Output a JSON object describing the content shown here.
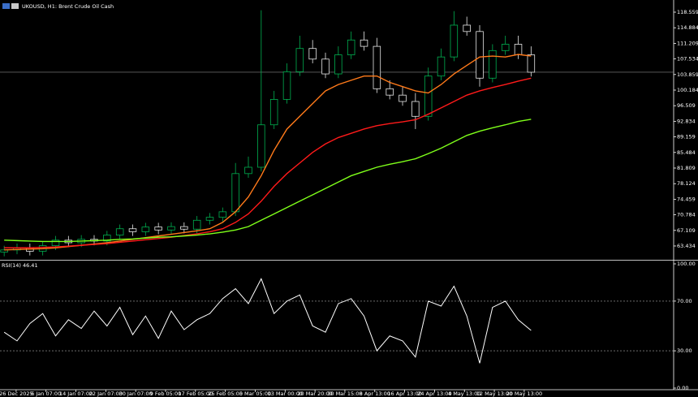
{
  "chart_data": [
    {
      "type": "candlestick",
      "title": "UKOUSD, H1:  Brent Crude Oil Cash",
      "x": [
        -0.4,
        0.03,
        0.46,
        0.89,
        1.32,
        1.75,
        2.18,
        2.61,
        3.04,
        3.47,
        3.9,
        4.33,
        4.76,
        5.19,
        5.62,
        6.05,
        6.48,
        6.91,
        7.34,
        7.77,
        8.2,
        8.63,
        9.06,
        9.49,
        9.92,
        10.35,
        10.78,
        11.21,
        11.64,
        12.07,
        12.5,
        12.93,
        13.36,
        13.79,
        14.22,
        14.65,
        15.08,
        15.51,
        15.94,
        16.37,
        16.8,
        17.23
      ],
      "open": [
        62.0,
        62.5,
        63.0,
        62.2,
        63.5,
        64.8,
        64.2,
        65.0,
        64.6,
        66.0,
        67.5,
        66.8,
        67.9,
        67.2,
        68.0,
        67.4,
        69.5,
        70.2,
        71.5,
        80.5,
        82.0,
        92.0,
        98.0,
        104.5,
        110.0,
        107.5,
        104.0,
        108.5,
        112.0,
        110.5,
        100.5,
        99.0,
        97.5,
        94.0,
        103.5,
        108.0,
        115.5,
        114.0,
        103.0,
        109.5,
        111.0,
        108.5
      ],
      "high": [
        63.5,
        64.0,
        64.0,
        64.5,
        65.8,
        65.8,
        66.0,
        66.0,
        67.0,
        68.5,
        68.5,
        68.9,
        68.9,
        69.0,
        69.0,
        70.5,
        71.2,
        72.5,
        83.0,
        84.5,
        119.0,
        100.0,
        106.5,
        113.0,
        112.0,
        109.0,
        110.5,
        114.0,
        114.0,
        112.5,
        102.5,
        101.0,
        99.5,
        105.5,
        110.0,
        118.8,
        117.5,
        115.5,
        111.0,
        113.0,
        113.0,
        110.5
      ],
      "low": [
        61.0,
        61.5,
        61.2,
        61.2,
        62.5,
        63.2,
        63.2,
        63.6,
        63.6,
        65.0,
        65.8,
        65.8,
        66.2,
        66.2,
        66.4,
        66.4,
        68.5,
        69.2,
        70.5,
        79.5,
        81.0,
        91.0,
        97.0,
        103.5,
        106.5,
        103.0,
        103.0,
        107.5,
        109.5,
        99.5,
        98.0,
        96.5,
        91.0,
        93.0,
        102.5,
        107.0,
        113.0,
        101.0,
        102.0,
        108.5,
        107.5,
        103.4
      ],
      "close": [
        62.5,
        63.0,
        62.2,
        63.5,
        64.8,
        64.2,
        65.0,
        64.6,
        66.0,
        67.5,
        66.8,
        67.9,
        67.2,
        68.0,
        67.4,
        69.5,
        70.2,
        71.5,
        80.5,
        82.0,
        92.0,
        98.0,
        104.5,
        110.0,
        107.5,
        104.0,
        108.5,
        112.0,
        110.5,
        100.5,
        99.0,
        97.5,
        94.0,
        103.5,
        108.0,
        115.5,
        114.0,
        103.0,
        109.5,
        111.0,
        108.5,
        104.4
      ],
      "up_color": "#00b050",
      "down_color": "#e8e8e8",
      "series": [
        {
          "color": "#ff7a1a",
          "values": [
            62.5,
            62.6,
            62.7,
            62.8,
            63.0,
            63.3,
            63.6,
            63.9,
            64.2,
            64.6,
            65.0,
            65.4,
            65.8,
            66.2,
            66.6,
            67.0,
            67.5,
            69.0,
            71.5,
            75.0,
            80.0,
            86.0,
            91.0,
            94.0,
            97.0,
            100.0,
            101.5,
            102.5,
            103.5,
            103.5,
            102.0,
            101.0,
            100.0,
            99.5,
            101.5,
            104.0,
            106.0,
            108.0,
            108.2,
            108.0,
            108.6,
            108.2
          ]
        },
        {
          "color": "#ff1a1a",
          "values": [
            63.0,
            63.0,
            63.0,
            63.1,
            63.2,
            63.4,
            63.6,
            63.8,
            64.0,
            64.3,
            64.6,
            64.9,
            65.2,
            65.5,
            65.9,
            66.3,
            66.8,
            67.5,
            69.0,
            71.0,
            74.0,
            77.5,
            80.5,
            83.0,
            85.5,
            87.5,
            89.0,
            90.0,
            91.0,
            91.8,
            92.3,
            92.7,
            93.2,
            94.5,
            96.0,
            97.5,
            99.0,
            100.0,
            100.8,
            101.5,
            102.3,
            103.0
          ]
        },
        {
          "color": "#7fff1a",
          "values": [
            64.8,
            64.7,
            64.6,
            64.5,
            64.5,
            64.5,
            64.6,
            64.7,
            64.8,
            65.0,
            65.1,
            65.3,
            65.5,
            65.6,
            65.8,
            66.0,
            66.3,
            66.7,
            67.2,
            68.0,
            69.5,
            71.0,
            72.5,
            74.0,
            75.5,
            77.0,
            78.5,
            80.0,
            81.0,
            82.0,
            82.7,
            83.3,
            84.0,
            85.2,
            86.5,
            88.0,
            89.5,
            90.5,
            91.3,
            92.0,
            92.8,
            93.3
          ]
        }
      ],
      "bid": 104.4,
      "xlim": [
        -0.54,
        22.0
      ],
      "ylim": [
        60.56,
        120.47
      ],
      "yticks": [
        63.434,
        67.109,
        70.784,
        74.459,
        78.124,
        81.809,
        85.484,
        89.159,
        92.834,
        96.509,
        100.184,
        103.859,
        107.534,
        111.209,
        114.884,
        118.559
      ]
    },
    {
      "type": "line",
      "title": "RSI(14) 46.41",
      "color": "#ffffff",
      "x": [
        -0.4,
        0.03,
        0.46,
        0.89,
        1.32,
        1.75,
        2.18,
        2.61,
        3.04,
        3.47,
        3.9,
        4.33,
        4.76,
        5.19,
        5.62,
        6.05,
        6.48,
        6.91,
        7.34,
        7.77,
        8.2,
        8.63,
        9.06,
        9.49,
        9.92,
        10.35,
        10.78,
        11.21,
        11.64,
        12.07,
        12.5,
        12.93,
        13.36,
        13.79,
        14.22,
        14.65,
        15.08,
        15.51,
        15.94,
        16.37,
        16.8,
        17.23
      ],
      "values": [
        45,
        38,
        52,
        60,
        42,
        55,
        48,
        62,
        50,
        65,
        43,
        58,
        40,
        62,
        47,
        55,
        60,
        72,
        80,
        68,
        88,
        60,
        70,
        75,
        50,
        45,
        68,
        72,
        58,
        30,
        42,
        38,
        25,
        70,
        66,
        82,
        58,
        20,
        65,
        70,
        55,
        46.41
      ],
      "xlim": [
        -0.54,
        22.0
      ],
      "ylim": [
        0,
        100
      ],
      "yticks": [
        {
          "value": 0,
          "label": "0.00"
        },
        {
          "value": 30,
          "label": "30.00"
        },
        {
          "value": 70,
          "label": "70.00"
        },
        {
          "value": 100,
          "label": "100.00"
        }
      ],
      "levels": [
        30,
        70
      ],
      "xticks": [
        {
          "value": 0,
          "label": "26 Dec 2025"
        },
        {
          "value": 1,
          "label": "6 Jan 07:00"
        },
        {
          "value": 2,
          "label": "14 Jan 07:00"
        },
        {
          "value": 3,
          "label": "22 Jan 07:00"
        },
        {
          "value": 4,
          "label": "30 Jan 07:00"
        },
        {
          "value": 5,
          "label": "9 Feb 05:00"
        },
        {
          "value": 6,
          "label": "17 Feb 05:00"
        },
        {
          "value": 7,
          "label": "25 Feb 05:00"
        },
        {
          "value": 8,
          "label": "5 Mar 05:00"
        },
        {
          "value": 9,
          "label": "13 Mar 00:00"
        },
        {
          "value": 10,
          "label": "20 Mar 20:00"
        },
        {
          "value": 11,
          "label": "30 Mar 15:00"
        },
        {
          "value": 12,
          "label": "8 Apr 13:00"
        },
        {
          "value": 13,
          "label": "16 Apr 13:00"
        },
        {
          "value": 14,
          "label": "24 Apr 13:00"
        },
        {
          "value": 15,
          "label": "4 May 13:00"
        },
        {
          "value": 16,
          "label": "12 May 13:00"
        },
        {
          "value": 17,
          "label": "20 May 13:00"
        }
      ]
    }
  ]
}
